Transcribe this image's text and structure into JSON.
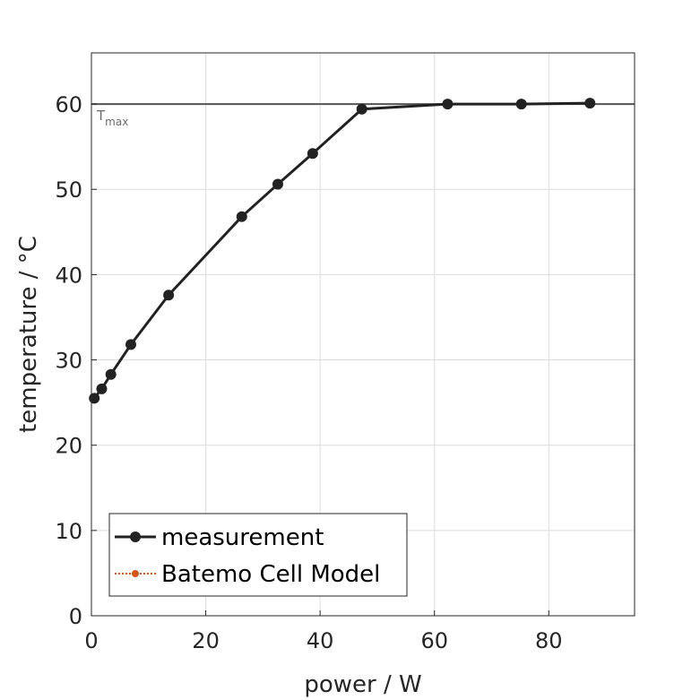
{
  "chart_data": {
    "type": "line",
    "xlabel": "power / W",
    "ylabel": "temperature / °C",
    "xlim": [
      0,
      95
    ],
    "ylim": [
      0,
      66
    ],
    "xticks": [
      0,
      20,
      40,
      60,
      80
    ],
    "yticks": [
      0,
      10,
      20,
      30,
      40,
      50,
      60
    ],
    "grid": true,
    "legend_position": "bottom-left",
    "series": [
      {
        "name": "measurement",
        "color": "#222222",
        "marker": "filled-circle",
        "x": [
          0.5,
          1.8,
          3.4,
          6.9,
          13.5,
          26.3,
          32.6,
          38.7,
          47.3,
          62.3,
          75.2,
          87.2
        ],
        "y": [
          25.5,
          26.6,
          28.3,
          31.8,
          37.6,
          46.8,
          50.6,
          54.2,
          59.4,
          60.0,
          60.0,
          60.1
        ]
      },
      {
        "name": "Batemo Cell Model",
        "color": "#d95319",
        "marker": "dotted-circle",
        "x": [],
        "y": []
      }
    ],
    "reference_line": {
      "y": 60,
      "label_main": "T",
      "label_sub": "max",
      "color": "#555555"
    }
  }
}
